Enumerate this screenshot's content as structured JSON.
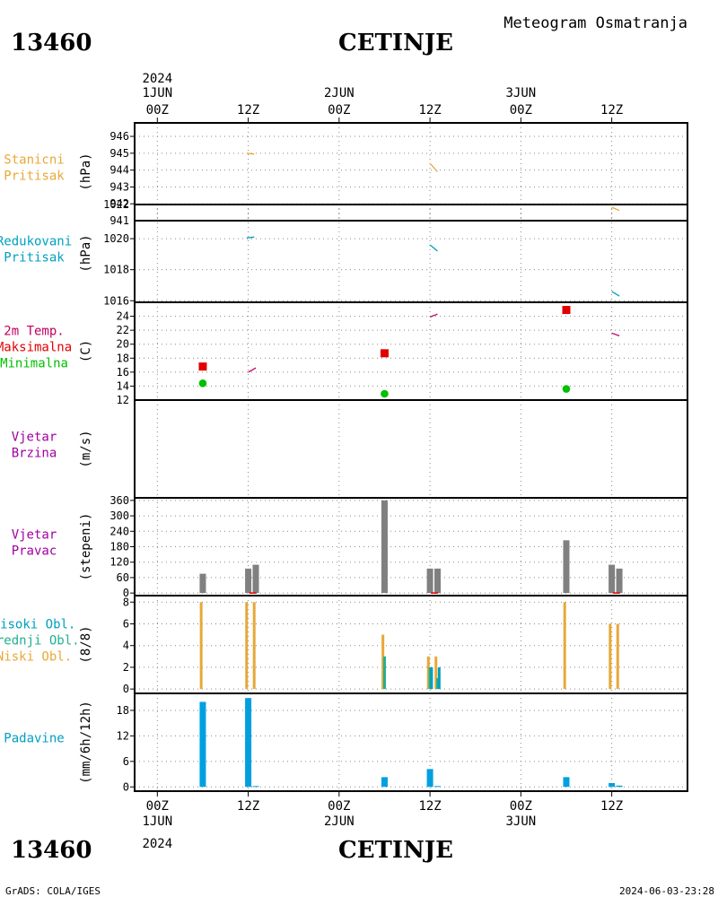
{
  "header": {
    "station_id": "13460",
    "station_name": "CETINJE",
    "chart_title": "Meteogram Osmatranja"
  },
  "footer": {
    "station_id": "13460",
    "station_name": "CETINJE",
    "credit": "GrADS: COLA/IGES",
    "timestamp": "2024-06-03-23:28"
  },
  "time_axis": {
    "year_label": "2024",
    "ticks": [
      {
        "x": 0,
        "label": "00Z"
      },
      {
        "x": 12,
        "label": "12Z"
      },
      {
        "x": 24,
        "label": "00Z"
      },
      {
        "x": 36,
        "label": "12Z"
      },
      {
        "x": 48,
        "label": "00Z"
      },
      {
        "x": 60,
        "label": "12Z"
      }
    ],
    "day_labels": [
      {
        "x": 0,
        "label": "1JUN"
      },
      {
        "x": 24,
        "label": "2JUN"
      },
      {
        "x": 48,
        "label": "3JUN"
      }
    ],
    "xlim": [
      -3,
      70
    ]
  },
  "chart_data": [
    {
      "type": "line",
      "labels": [
        "Stanicni",
        "Pritisak"
      ],
      "label_color": "#e8a838",
      "ylabel": "(hPa)",
      "ylim": [
        941,
        946.8
      ],
      "yticks": [
        942,
        943,
        944,
        945,
        946
      ],
      "bottom_label": "941",
      "series": [
        {
          "color": "#e8a838",
          "segments": [
            [
              [
                11.8,
                945.0
              ],
              [
                12.8,
                944.95
              ]
            ],
            [
              [
                36.0,
                944.4
              ],
              [
                37.0,
                943.9
              ]
            ],
            [
              [
                60.0,
                941.8
              ],
              [
                61.0,
                941.6
              ]
            ]
          ]
        }
      ]
    },
    {
      "type": "line",
      "labels": [
        "Redukovani",
        "Pritisak"
      ],
      "label_color": "#00a0c0",
      "ylabel": "(hPa)",
      "ylim": [
        1015.9,
        1022.2
      ],
      "yticks": [
        1016,
        1018,
        1020
      ],
      "top_label": "1022",
      "series": [
        {
          "color": "#00a0c0",
          "segments": [
            [
              [
                11.8,
                1020.05
              ],
              [
                12.8,
                1020.1
              ]
            ],
            [
              [
                36.0,
                1019.6
              ],
              [
                37.0,
                1019.2
              ]
            ],
            [
              [
                60.0,
                1016.6
              ],
              [
                61.0,
                1016.3
              ]
            ]
          ]
        }
      ]
    },
    {
      "type": "scatter",
      "labels": [
        "2m Temp.",
        "Maksimalna",
        "Minimalna"
      ],
      "label_colors": [
        "#c00060",
        "#e00000",
        "#00c000"
      ],
      "ylabel": "(C)",
      "ylim": [
        12,
        26
      ],
      "yticks": [
        14,
        16,
        18,
        20,
        22,
        24
      ],
      "bottom_label": "12",
      "temperature_segments": [
        [
          [
            12.0,
            16.0
          ],
          [
            13.0,
            16.6
          ]
        ],
        [
          [
            36.0,
            23.9
          ],
          [
            37.0,
            24.3
          ]
        ],
        [
          [
            60.0,
            21.6
          ],
          [
            61.0,
            21.2
          ]
        ]
      ],
      "temperature_color": "#c00060",
      "maximum": {
        "color": "#e00000",
        "points": [
          [
            6,
            16.8
          ],
          [
            30,
            18.7
          ],
          [
            54,
            24.9
          ]
        ]
      },
      "minimum": {
        "color": "#00c000",
        "points": [
          [
            6,
            14.4
          ],
          [
            30,
            12.9
          ],
          [
            54,
            13.6
          ]
        ]
      }
    },
    {
      "type": "line",
      "labels": [
        "Vjetar",
        "Brzina"
      ],
      "label_color": "#a000a0",
      "ylabel": "(m/s)",
      "ylim": [
        0,
        1
      ],
      "yticks": [],
      "series": []
    },
    {
      "type": "bar",
      "labels": [
        "Vjetar",
        "Pravac"
      ],
      "label_color": "#a000a0",
      "ylabel": "(stepeni)",
      "ylim": [
        -10,
        370
      ],
      "yticks": [
        0,
        60,
        120,
        180,
        240,
        300,
        360
      ],
      "bar_color": "#808080",
      "bars": [
        {
          "x": 6,
          "value": 75
        },
        {
          "x": 12,
          "value": 95
        },
        {
          "x": 13,
          "value": 110
        },
        {
          "x": 30,
          "value": 360
        },
        {
          "x": 36,
          "value": 95
        },
        {
          "x": 37,
          "value": 95
        },
        {
          "x": 54,
          "value": 205
        },
        {
          "x": 60,
          "value": 110
        },
        {
          "x": 61,
          "value": 95
        }
      ],
      "baseline_marks": [
        12.6,
        36.6,
        60.6
      ],
      "baseline_color": "#e00000"
    },
    {
      "type": "bar",
      "labels": [
        "Visoki Obl.",
        "Srednji Obl.",
        "Niski Obl."
      ],
      "label_colors": [
        "#00a0c0",
        "#20b090",
        "#e8a838"
      ],
      "ylabel": "(8/8)",
      "ylim": [
        -0.4,
        8.6
      ],
      "yticks": [
        0,
        2,
        4,
        6,
        8
      ],
      "series": [
        {
          "name": "Niski Obl.",
          "color": "#e8a838",
          "bars": [
            {
              "x": 6,
              "value": 8
            },
            {
              "x": 12,
              "value": 8
            },
            {
              "x": 13,
              "value": 8
            },
            {
              "x": 30,
              "value": 5
            },
            {
              "x": 36,
              "value": 3
            },
            {
              "x": 37,
              "value": 3
            },
            {
              "x": 54,
              "value": 8
            },
            {
              "x": 60,
              "value": 6
            },
            {
              "x": 61,
              "value": 6
            }
          ]
        },
        {
          "name": "Srednji Obl.",
          "color": "#20b090",
          "bars": [
            {
              "x": 30,
              "value": 3
            },
            {
              "x": 36,
              "value": 2
            },
            {
              "x": 37,
              "value": 1
            }
          ]
        },
        {
          "name": "Visoki Obl.",
          "color": "#00a0c0",
          "bars": [
            {
              "x": 36,
              "value": 2
            },
            {
              "x": 37,
              "value": 2
            }
          ]
        }
      ]
    },
    {
      "type": "bar",
      "labels": [
        "Padavine"
      ],
      "label_color": "#00a0c0",
      "ylabel": "(mm/6h/12h)",
      "ylim": [
        -1,
        22
      ],
      "yticks": [
        0,
        6,
        12,
        18
      ],
      "bar_color": "#00a0e0",
      "bars": [
        {
          "x": 6,
          "value": 20.0
        },
        {
          "x": 12,
          "value": 20.9
        },
        {
          "x": 13,
          "value": 0.2
        },
        {
          "x": 30,
          "value": 2.3
        },
        {
          "x": 36,
          "value": 4.2
        },
        {
          "x": 37,
          "value": 0.2
        },
        {
          "x": 54,
          "value": 2.3
        },
        {
          "x": 60,
          "value": 0.9
        },
        {
          "x": 61,
          "value": 0.3
        }
      ]
    }
  ]
}
